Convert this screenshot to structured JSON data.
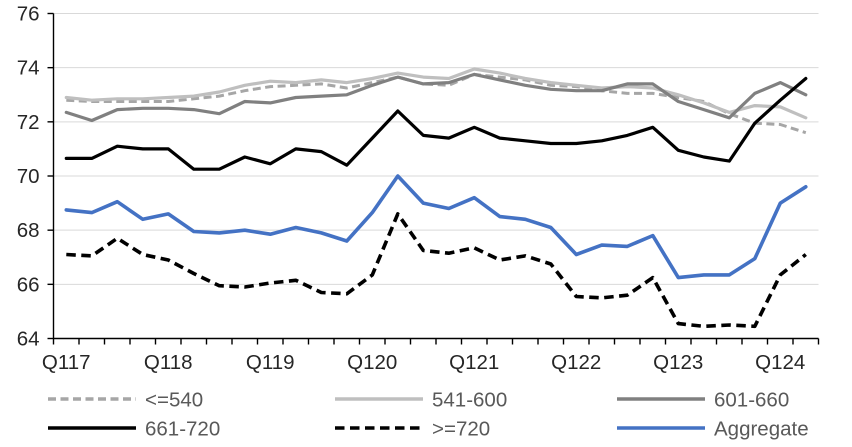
{
  "chart_data": {
    "type": "line",
    "title": "",
    "categories": [
      "Q117",
      "Q217",
      "Q317",
      "Q417",
      "Q118",
      "Q218",
      "Q318",
      "Q418",
      "Q119",
      "Q219",
      "Q319",
      "Q419",
      "Q120",
      "Q220",
      "Q320",
      "Q420",
      "Q121",
      "Q221",
      "Q321",
      "Q421",
      "Q122",
      "Q222",
      "Q322",
      "Q422",
      "Q123",
      "Q223",
      "Q323",
      "Q423",
      "Q124",
      "Q224"
    ],
    "x_axis_labels": [
      "Q117",
      "Q118",
      "Q119",
      "Q120",
      "Q121",
      "Q122",
      "Q123",
      "Q124"
    ],
    "ylim": [
      64,
      76
    ],
    "ytick_interval": 2,
    "ytick_labels": [
      "64",
      "66",
      "68",
      "70",
      "72",
      "74",
      "76"
    ],
    "grid": true,
    "legend_position": "bottom",
    "series": [
      {
        "name": "<=540",
        "color": "#A6A6A6",
        "style": "dashed",
        "width": 3,
        "dash": "8 4.5",
        "values": [
          72.8,
          72.75,
          72.75,
          72.75,
          72.75,
          72.85,
          72.95,
          73.15,
          73.3,
          73.35,
          73.4,
          73.25,
          73.45,
          73.65,
          73.4,
          73.35,
          73.75,
          73.65,
          73.55,
          73.35,
          73.3,
          73.15,
          73.05,
          73.05,
          72.9,
          72.75,
          72.3,
          71.95,
          71.9,
          71.6
        ]
      },
      {
        "name": "541-600",
        "color": "#BFBFBF",
        "style": "solid",
        "width": 3.2,
        "dash": "",
        "values": [
          72.9,
          72.8,
          72.85,
          72.85,
          72.9,
          72.95,
          73.1,
          73.35,
          73.5,
          73.45,
          73.55,
          73.45,
          73.6,
          73.8,
          73.65,
          73.6,
          73.95,
          73.8,
          73.6,
          73.45,
          73.35,
          73.25,
          73.3,
          73.25,
          73.0,
          72.7,
          72.35,
          72.6,
          72.55,
          72.15
        ]
      },
      {
        "name": "601-660",
        "color": "#808080",
        "style": "solid",
        "width": 3.2,
        "dash": "",
        "values": [
          72.35,
          72.05,
          72.45,
          72.5,
          72.5,
          72.45,
          72.3,
          72.75,
          72.7,
          72.9,
          72.95,
          73.0,
          73.35,
          73.65,
          73.4,
          73.45,
          73.75,
          73.55,
          73.35,
          73.2,
          73.15,
          73.15,
          73.4,
          73.4,
          72.75,
          72.45,
          72.15,
          73.05,
          73.45,
          73.0
        ]
      },
      {
        "name": "661-720",
        "color": "#000000",
        "style": "solid",
        "width": 3.2,
        "dash": "",
        "values": [
          70.65,
          70.65,
          71.1,
          71.0,
          71.0,
          70.25,
          70.25,
          70.7,
          70.45,
          71.0,
          70.9,
          70.4,
          71.4,
          72.4,
          71.5,
          71.4,
          71.8,
          71.4,
          71.3,
          71.2,
          71.2,
          71.3,
          71.5,
          71.8,
          70.95,
          70.7,
          70.55,
          71.95,
          72.8,
          73.6
        ]
      },
      {
        "name": ">=720",
        "color": "#000000",
        "style": "dashed",
        "width": 3.6,
        "dash": "9.5 5.5",
        "values": [
          67.1,
          67.05,
          67.7,
          67.1,
          66.9,
          66.4,
          65.95,
          65.9,
          66.05,
          66.15,
          65.7,
          65.65,
          66.35,
          68.6,
          67.25,
          67.15,
          67.35,
          66.9,
          67.05,
          66.75,
          65.55,
          65.5,
          65.6,
          66.25,
          64.55,
          64.45,
          64.5,
          64.45,
          66.35,
          67.1
        ]
      },
      {
        "name": "Aggregate",
        "color": "#4472C4",
        "style": "solid",
        "width": 3.6,
        "dash": "",
        "values": [
          68.75,
          68.65,
          69.05,
          68.4,
          68.6,
          67.95,
          67.9,
          68.0,
          67.85,
          68.1,
          67.9,
          67.6,
          68.65,
          70.0,
          69.0,
          68.8,
          69.2,
          68.5,
          68.4,
          68.1,
          67.1,
          67.45,
          67.4,
          67.8,
          66.25,
          66.35,
          66.35,
          66.95,
          69.0,
          69.6
        ]
      }
    ],
    "colors": {
      "background": "#FFFFFF",
      "gridline": "#D9D9D9",
      "axis_line": "#000000",
      "axis_text": "#262626",
      "legend_text": "#595959"
    }
  }
}
